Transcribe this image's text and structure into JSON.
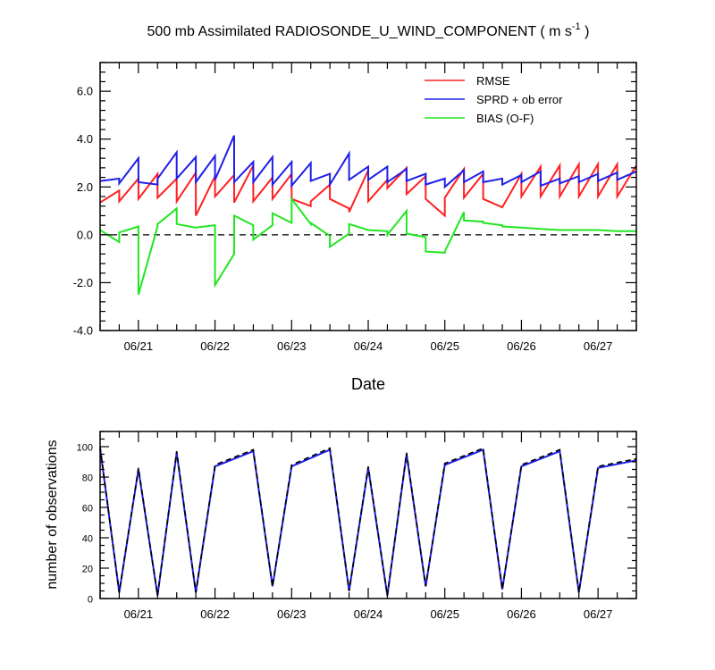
{
  "chart_data": [
    {
      "type": "line",
      "title_main": "500 mb Assimilated RADIOSONDE_U_WIND_COMPONENT ( m s",
      "title_sup": "-1",
      "title_end": " )",
      "xlabel": "Date",
      "ylabel": "",
      "xlim": [
        0,
        7
      ],
      "ylim": [
        -4,
        7.2
      ],
      "xticks": [
        0.5,
        1.5,
        2.5,
        3.5,
        4.5,
        5.5,
        6.5
      ],
      "xtick_labels": [
        "06/21",
        "06/22",
        "06/23",
        "06/24",
        "06/25",
        "06/26",
        "06/27"
      ],
      "yticks": [
        -4,
        -2,
        0,
        2,
        4,
        6
      ],
      "ytick_labels": [
        "-4.0",
        "-2.0",
        "0.0",
        "2.0",
        "4.0",
        "6.0"
      ],
      "zero_line": true,
      "grid": false,
      "legend": "top-right",
      "series": [
        {
          "name": "RMSE",
          "color": "#ff2020",
          "x": [
            0,
            0.25,
            0.25,
            0.5,
            0.5,
            0.75,
            0.75,
            1.0,
            1.0,
            1.25,
            1.25,
            1.5,
            1.5,
            1.75,
            1.75,
            2.0,
            2.0,
            2.25,
            2.25,
            2.5,
            2.5,
            2.75,
            2.75,
            3.0,
            3.0,
            3.25,
            3.25,
            3.5,
            3.5,
            3.75,
            3.75,
            4.0,
            4.0,
            4.25,
            4.25,
            4.5,
            4.5,
            4.75,
            4.75,
            5.0,
            5.0,
            5.25,
            5.25,
            5.5,
            5.5,
            5.75,
            5.75,
            6.0,
            6.0,
            6.25,
            6.25,
            6.5,
            6.5,
            6.75,
            6.75,
            7.0
          ],
          "y": [
            1.35,
            1.85,
            1.4,
            2.35,
            1.5,
            2.55,
            1.55,
            2.35,
            1.4,
            2.6,
            0.8,
            2.45,
            1.6,
            2.5,
            1.35,
            2.9,
            1.4,
            2.4,
            1.5,
            2.55,
            1.5,
            1.2,
            1.4,
            2.1,
            1.5,
            1.1,
            0.95,
            2.7,
            1.4,
            2.3,
            1.95,
            2.8,
            1.7,
            2.45,
            1.5,
            0.8,
            1.55,
            2.75,
            1.55,
            2.55,
            1.5,
            1.15,
            1.15,
            2.55,
            1.6,
            2.85,
            1.6,
            2.9,
            1.6,
            2.95,
            1.6,
            2.95,
            1.6,
            2.95,
            1.6,
            2.9
          ]
        },
        {
          "name": "SPRD + ob error",
          "color": "#1f1fe8",
          "x": [
            0,
            0.25,
            0.25,
            0.5,
            0.5,
            0.75,
            0.75,
            1.0,
            1.0,
            1.25,
            1.25,
            1.5,
            1.5,
            1.75,
            1.75,
            2.0,
            2.0,
            2.25,
            2.25,
            2.5,
            2.5,
            2.75,
            2.75,
            3.0,
            3.0,
            3.25,
            3.25,
            3.5,
            3.5,
            3.75,
            3.75,
            4.0,
            4.0,
            4.25,
            4.25,
            4.5,
            4.5,
            4.75,
            4.75,
            5.0,
            5.0,
            5.25,
            5.25,
            5.5,
            5.5,
            5.75,
            5.75,
            6.0,
            6.0,
            6.25,
            6.25,
            6.5,
            6.5,
            6.75,
            6.75,
            7.0
          ],
          "y": [
            2.25,
            2.35,
            2.15,
            3.2,
            2.2,
            2.1,
            2.35,
            3.45,
            2.35,
            3.25,
            2.2,
            3.3,
            2.3,
            4.15,
            2.2,
            3.05,
            2.2,
            3.25,
            2.1,
            3.05,
            2.05,
            3.0,
            2.25,
            2.55,
            2.1,
            3.4,
            2.3,
            2.85,
            2.3,
            2.85,
            2.2,
            2.75,
            2.25,
            2.55,
            2.1,
            2.35,
            2.0,
            2.7,
            2.2,
            2.65,
            2.2,
            2.35,
            2.1,
            2.5,
            2.2,
            2.65,
            2.05,
            2.35,
            2.15,
            2.45,
            2.2,
            2.55,
            2.25,
            2.6,
            2.3,
            2.65
          ]
        },
        {
          "name": "BIAS (O-F)",
          "color": "#22e622",
          "x": [
            0,
            0.25,
            0.25,
            0.5,
            0.5,
            0.75,
            0.75,
            1.0,
            1.0,
            1.25,
            1.25,
            1.5,
            1.5,
            1.75,
            1.75,
            2.0,
            2.0,
            2.25,
            2.25,
            2.5,
            2.5,
            2.75,
            2.75,
            3.0,
            3.0,
            3.25,
            3.25,
            3.5,
            3.5,
            3.75,
            3.75,
            4.0,
            4.0,
            4.25,
            4.25,
            4.5,
            4.5,
            4.75,
            4.75,
            5.0,
            5.0,
            5.25,
            5.25,
            5.5,
            5.5,
            5.75,
            5.75,
            6.0,
            6.0,
            6.25,
            6.25,
            6.5,
            6.5,
            6.75,
            6.75,
            7.0
          ],
          "y": [
            0.2,
            -0.3,
            0.1,
            0.35,
            -2.5,
            0.35,
            0.45,
            1.1,
            0.45,
            0.3,
            0.3,
            0.4,
            -2.1,
            -0.8,
            0.8,
            0.4,
            -0.2,
            0.4,
            0.9,
            0.5,
            1.5,
            0.45,
            0.5,
            -0.05,
            -0.5,
            0.05,
            0.45,
            0.2,
            0.2,
            0.15,
            0.0,
            1.0,
            0.05,
            -0.1,
            -0.7,
            -0.75,
            -0.7,
            0.95,
            0.6,
            0.55,
            0.5,
            0.4,
            0.35,
            0.3,
            0.3,
            0.25,
            0.25,
            0.2,
            0.2,
            0.2,
            0.2,
            0.2,
            0.2,
            0.15,
            0.15,
            0.15
          ]
        }
      ]
    },
    {
      "type": "line",
      "title": "",
      "xlabel": "",
      "ylabel": "number of observations",
      "xlim": [
        0,
        7
      ],
      "ylim": [
        0,
        110
      ],
      "xticks": [
        0.5,
        1.5,
        2.5,
        3.5,
        4.5,
        5.5,
        6.5
      ],
      "xtick_labels": [
        "06/21",
        "06/22",
        "06/23",
        "06/24",
        "06/25",
        "06/26",
        "06/27"
      ],
      "yticks": [
        0,
        20,
        40,
        60,
        80,
        100
      ],
      "ytick_labels": [
        "0",
        "20",
        "40",
        "60",
        "80",
        "100"
      ],
      "grid": false,
      "legend": "none",
      "series": [
        {
          "color": "#1f1fe8",
          "style": "solid",
          "x": [
            0,
            0.25,
            0.5,
            0.75,
            1.0,
            1.25,
            1.5,
            2.0,
            2.25,
            2.5,
            3.0,
            3.25,
            3.5,
            3.75,
            4.0,
            4.25,
            4.5,
            5.0,
            5.25,
            5.5,
            6.0,
            6.25,
            6.5,
            7.0
          ],
          "y": [
            99,
            4,
            85,
            2,
            96,
            4,
            87,
            97,
            8,
            87,
            98,
            5,
            86,
            2,
            95,
            8,
            88,
            98,
            6,
            87,
            97,
            4,
            86,
            91
          ]
        },
        {
          "color": "#000000",
          "style": "dashed",
          "x": [
            0,
            0.25,
            0.5,
            0.75,
            1.0,
            1.25,
            1.5,
            2.0,
            2.25,
            2.5,
            3.0,
            3.25,
            3.5,
            3.75,
            4.0,
            4.25,
            4.5,
            5.0,
            5.25,
            5.5,
            6.0,
            6.25,
            6.5,
            7.0
          ],
          "y": [
            100,
            4,
            86,
            2,
            97,
            4,
            88,
            98,
            8,
            88,
            99,
            5,
            87,
            2,
            96,
            8,
            89,
            99,
            6,
            88,
            98,
            4,
            87,
            92
          ]
        }
      ]
    }
  ]
}
